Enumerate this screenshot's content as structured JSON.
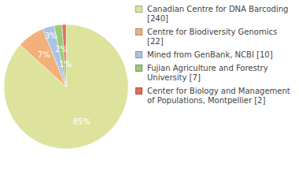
{
  "chart_data": {
    "type": "pie",
    "categories": [
      "Canadian Centre for DNA Barcoding [240]",
      "Centre for Biodiversity Genomics [22]",
      "Mined from GenBank, NCBI [10]",
      "Fujian Agriculture and Forestry University [7]",
      "Center for Biology and Management of Populations, Montpellier [2]"
    ],
    "values": [
      85,
      7,
      3,
      2,
      1
    ],
    "value_labels": [
      "85%",
      "7%",
      "3%",
      "2%",
      "1%"
    ],
    "colors": [
      "#dde39d",
      "#f2b07a",
      "#a8c3e6",
      "#9ccb78",
      "#e06d5a"
    ],
    "data_labels": true,
    "legend": "right"
  }
}
